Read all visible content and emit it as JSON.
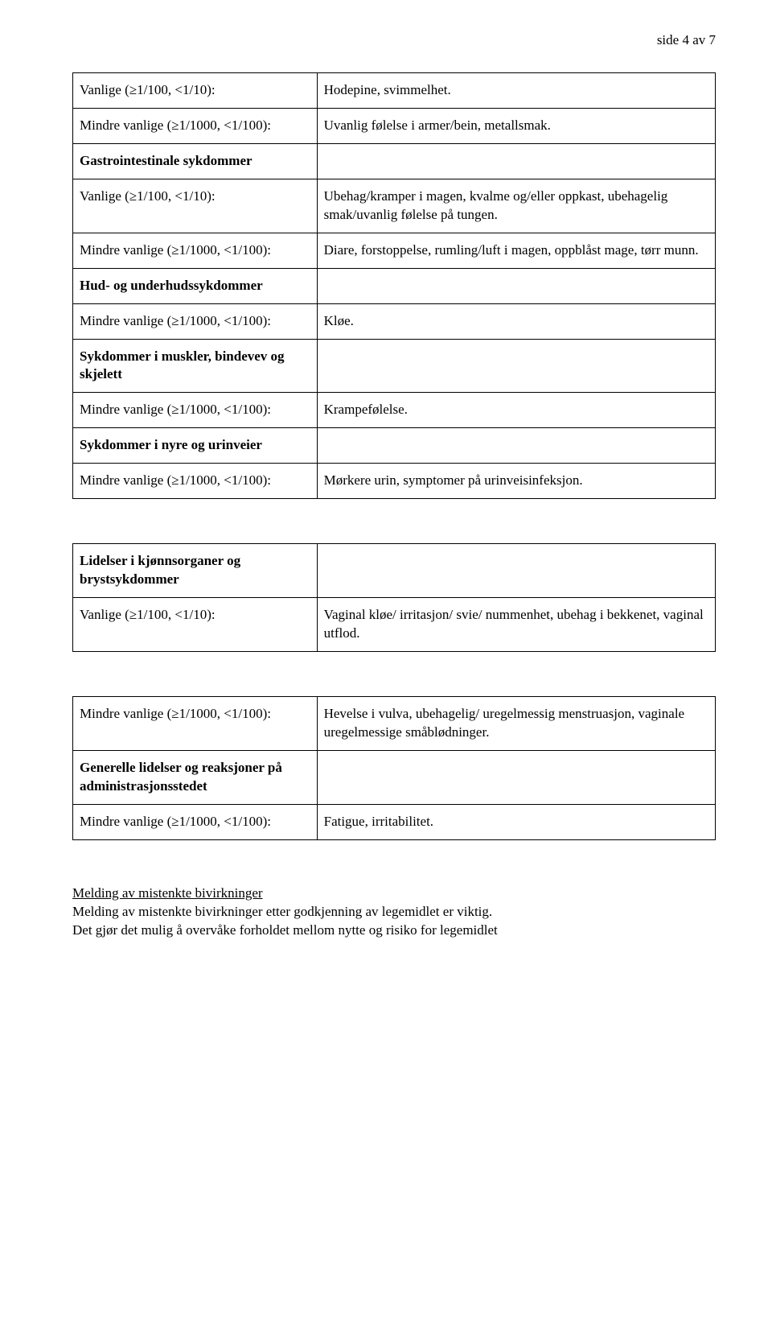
{
  "page_number": "side 4 av 7",
  "table1": {
    "rows": [
      {
        "left": "Vanlige (≥1/100, <1/10):",
        "left_bold": false,
        "right": "Hodepine, svimmelhet."
      },
      {
        "left": "Mindre vanlige (≥1/1000, <1/100):",
        "left_bold": false,
        "right": "Uvanlig følelse i armer/bein, metallsmak."
      },
      {
        "left": "Gastrointestinale sykdommer",
        "left_bold": true,
        "right": ""
      },
      {
        "left": "Vanlige (≥1/100, <1/10):",
        "left_bold": false,
        "right": "Ubehag/kramper i magen, kvalme og/eller oppkast, ubehagelig smak/uvanlig følelse på tungen."
      },
      {
        "left": "Mindre vanlige (≥1/1000, <1/100):",
        "left_bold": false,
        "right": "Diare, forstoppelse, rumling/luft i magen, oppblåst mage, tørr munn."
      },
      {
        "left": "Hud- og underhudssykdommer",
        "left_bold": true,
        "right": ""
      },
      {
        "left": "Mindre vanlige (≥1/1000, <1/100):",
        "left_bold": false,
        "right": "Kløe."
      },
      {
        "left": "Sykdommer i muskler, bindevev og skjelett",
        "left_bold": true,
        "right": ""
      },
      {
        "left": "Mindre vanlige (≥1/1000, <1/100):",
        "left_bold": false,
        "right": "Krampefølelse."
      },
      {
        "left": "Sykdommer i nyre og urinveier",
        "left_bold": true,
        "right": ""
      },
      {
        "left": "Mindre vanlige (≥1/1000, <1/100):",
        "left_bold": false,
        "right": "Mørkere urin, symptomer på urinveisinfeksjon."
      }
    ]
  },
  "table2": {
    "rows": [
      {
        "left": "Lidelser i kjønnsorganer og brystsykdommer",
        "left_bold": true,
        "right": ""
      },
      {
        "left": "Vanlige (≥1/100, <1/10):",
        "left_bold": false,
        "right": "Vaginal kløe/ irritasjon/ svie/ nummenhet, ubehag i bekkenet, vaginal utflod."
      }
    ]
  },
  "table3": {
    "rows": [
      {
        "left": "Mindre vanlige (≥1/1000, <1/100):",
        "left_bold": false,
        "right": "Hevelse i vulva, ubehagelig/ uregelmessig menstruasjon, vaginale uregelmessige småblødninger."
      },
      {
        "left": "Generelle lidelser og reaksjoner på administrasjonsstedet",
        "left_bold": true,
        "right": ""
      },
      {
        "left": "Mindre vanlige (≥1/1000, <1/100):",
        "left_bold": false,
        "right": "Fatigue, irritabilitet."
      }
    ]
  },
  "footer": {
    "heading": "Melding av mistenkte bivirkninger",
    "line1": "Melding av mistenkte bivirkninger etter godkjenning av legemidlet er viktig.",
    "line2": "Det gjør det mulig å overvåke forholdet mellom nytte og risiko for legemidlet"
  }
}
